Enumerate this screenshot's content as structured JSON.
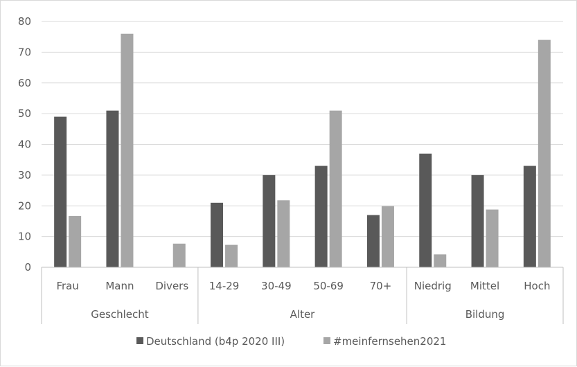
{
  "chart_data": {
    "type": "bar",
    "ylim": [
      0,
      80
    ],
    "yticks": [
      0,
      10,
      20,
      30,
      40,
      50,
      60,
      70,
      80
    ],
    "grid": true,
    "legend_position": "bottom",
    "groups": [
      {
        "label": "Geschlecht",
        "categories": [
          "Frau",
          "Mann",
          "Divers"
        ]
      },
      {
        "label": "Alter",
        "categories": [
          "14-29",
          "30-49",
          "50-69",
          "70+"
        ]
      },
      {
        "label": "Bildung",
        "categories": [
          "Niedrig",
          "Mittel",
          "Hoch"
        ]
      }
    ],
    "categories": [
      "Frau",
      "Mann",
      "Divers",
      "14-29",
      "30-49",
      "50-69",
      "70+",
      "Niedrig",
      "Mittel",
      "Hoch"
    ],
    "series": [
      {
        "name": "Deutschland (b4p 2020 III)",
        "color": "#595959",
        "values": [
          49,
          51,
          null,
          21,
          30,
          33,
          17,
          37,
          30,
          33
        ]
      },
      {
        "name": "#meinfernsehen2021",
        "color": "#a6a6a6",
        "values": [
          16.7,
          76,
          7.7,
          7.3,
          21.8,
          51,
          19.9,
          4.2,
          18.8,
          74
        ]
      }
    ]
  }
}
